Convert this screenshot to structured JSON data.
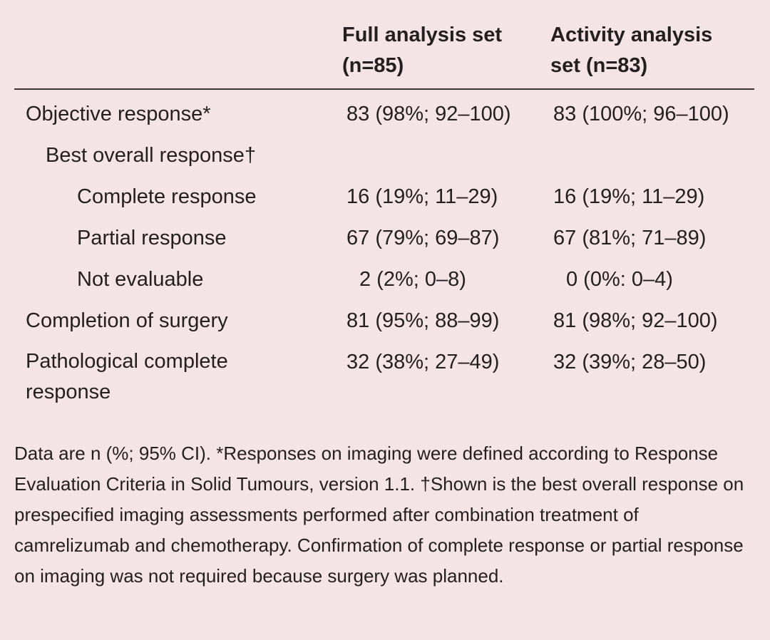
{
  "header": {
    "col1": "Full analysis set\n(n=85)",
    "col2": "Activity analysis\nset (n=83)"
  },
  "rows": [
    {
      "label": "Objective response*",
      "full": "83 (98%; 92–100)",
      "activity": "83 (100%; 96–100)"
    },
    {
      "label": "Best overall response†",
      "full": "",
      "activity": ""
    },
    {
      "label": "Complete response",
      "full": "16 (19%; 11–29)",
      "activity": "16 (19%; 11–29)"
    },
    {
      "label": "Partial response",
      "full": "67 (79%; 69–87)",
      "activity": "67 (81%; 71–89)"
    },
    {
      "label": "Not evaluable",
      "full": "2 (2%; 0–8)",
      "activity": "0 (0%: 0–4)"
    },
    {
      "label": "Completion of surgery",
      "full": "81 (95%; 88–99)",
      "activity": "81 (98%; 92–100)"
    },
    {
      "label": "Pathological complete response",
      "full": "32 (38%; 27–49)",
      "activity": "32 (39%; 28–50)"
    }
  ],
  "footnote": "Data are n (%; 95% CI). *Responses on imaging were defined according to Response Evaluation Criteria in Solid Tumours, version 1.1. †Shown is the best overall response on prespecified imaging assessments performed after combination treatment of camrelizumab and chemotherapy. Confirmation of complete response or partial response on imaging was not required because surgery was planned."
}
